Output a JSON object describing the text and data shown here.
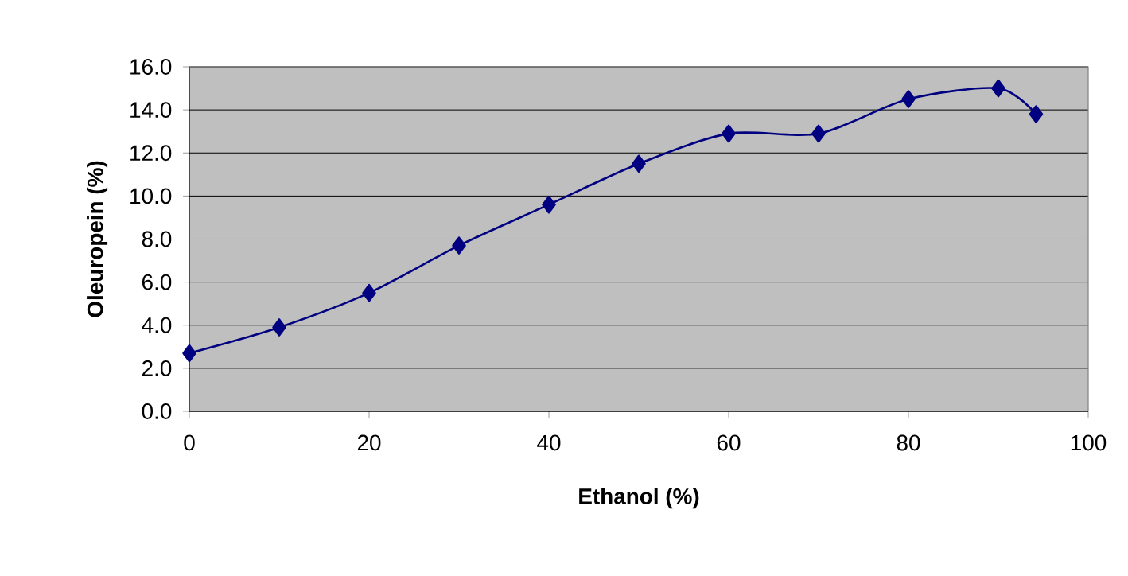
{
  "chart_data": {
    "type": "line",
    "xlabel": "Ethanol (%)",
    "ylabel": "Oleuropein (%)",
    "x": [
      0,
      10,
      20,
      30,
      40,
      50,
      60,
      70,
      80,
      90,
      94.2
    ],
    "series": [
      {
        "color": "#000080",
        "values": [
          2.7,
          3.9,
          5.5,
          7.7,
          9.6,
          11.5,
          12.9,
          12.9,
          14.5,
          15.0,
          13.8
        ]
      }
    ],
    "xlim": [
      0,
      100
    ],
    "ylim": [
      0,
      16
    ],
    "xticks": [
      0,
      20,
      40,
      60,
      80,
      100
    ],
    "yticks": [
      {
        "value": 0,
        "label": "0.0"
      },
      {
        "value": 2,
        "label": "2.0"
      },
      {
        "value": 4,
        "label": "4.0"
      },
      {
        "value": 6,
        "label": "6.0"
      },
      {
        "value": 8,
        "label": "8.0"
      },
      {
        "value": 10,
        "label": "10.0"
      },
      {
        "value": 12,
        "label": "12.0"
      },
      {
        "value": 14,
        "label": "14.0"
      },
      {
        "value": 16,
        "label": "16.0"
      }
    ],
    "grid": "y",
    "marker": "diamond",
    "line_style": "solid"
  }
}
